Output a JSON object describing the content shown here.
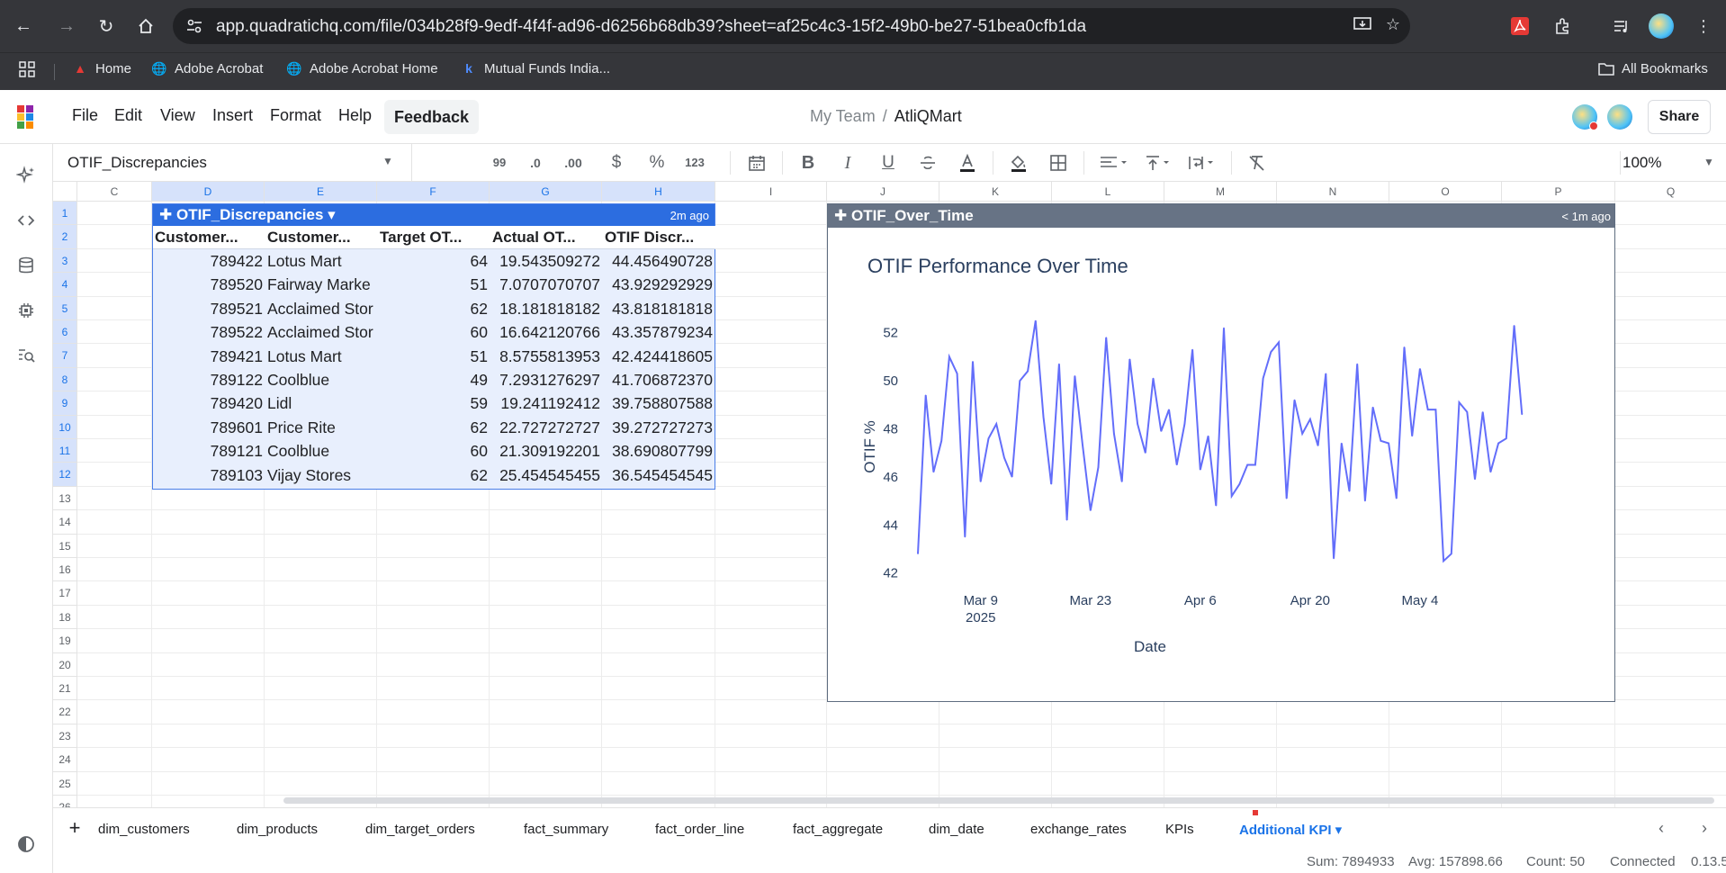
{
  "browser": {
    "url": "app.quadratichq.com/file/034b28f9-9edf-4f4f-ad96-d6256b68db39?sheet=af25c4c3-15f2-49b0-be27-51bea0cfb1da",
    "bookmarks": [
      {
        "label": "Home",
        "icon": "acrobat-icon"
      },
      {
        "label": "Adobe Acrobat",
        "icon": "globe-icon"
      },
      {
        "label": "Adobe Acrobat Home",
        "icon": "globe-icon"
      },
      {
        "label": "Mutual Funds India...",
        "icon": "kuvera-icon"
      }
    ],
    "all_bookmarks": "All Bookmarks"
  },
  "app": {
    "menu": [
      "File",
      "Edit",
      "View",
      "Insert",
      "Format",
      "Help"
    ],
    "feedback": "Feedback",
    "team": "My Team",
    "file_name": "AtliQMart",
    "share": "Share"
  },
  "toolbar": {
    "namebox": "OTIF_Discrepancies",
    "zoom": "100%",
    "quote_label": "99",
    "dec_less": ".0",
    "dec_more": ".00",
    "currency": "$",
    "percent": "%",
    "number_fmt": "123",
    "bold": "B",
    "italic": "I",
    "underline": "U"
  },
  "grid": {
    "columns": [
      "C",
      "D",
      "E",
      "F",
      "G",
      "H",
      "I",
      "J",
      "K",
      "L",
      "M",
      "N",
      "O",
      "P",
      "Q"
    ],
    "rows": [
      "1",
      "2",
      "3",
      "4",
      "5",
      "6",
      "7",
      "8",
      "9",
      "10",
      "11",
      "12",
      "13",
      "14",
      "15",
      "16",
      "17",
      "18",
      "19",
      "20",
      "21",
      "22",
      "23",
      "24",
      "25",
      "26"
    ]
  },
  "table": {
    "name": "OTIF_Discrepancies",
    "updated": "2m ago",
    "headers": [
      "Customer...",
      "Customer...",
      "Target OT...",
      "Actual OT...",
      "OTIF Discr..."
    ],
    "rows": [
      [
        "789422",
        "Lotus Mart",
        "64",
        "19.543509272",
        "44.456490728"
      ],
      [
        "789520",
        "Fairway Marke",
        "51",
        "7.0707070707",
        "43.929292929"
      ],
      [
        "789521",
        "Acclaimed Stor",
        "62",
        "18.181818182",
        "43.818181818"
      ],
      [
        "789522",
        "Acclaimed Stor",
        "60",
        "16.642120766",
        "43.357879234"
      ],
      [
        "789421",
        "Lotus Mart",
        "51",
        "8.5755813953",
        "42.424418605"
      ],
      [
        "789122",
        "Coolblue",
        "49",
        "7.2931276297",
        "41.706872370"
      ],
      [
        "789420",
        "Lidl",
        "59",
        "19.241192412",
        "39.758807588"
      ],
      [
        "789601",
        "Price Rite",
        "62",
        "22.727272727",
        "39.272727273"
      ],
      [
        "789121",
        "Coolblue",
        "60",
        "21.309192201",
        "38.690807799"
      ],
      [
        "789103",
        "Vijay Stores",
        "62",
        "25.454545455",
        "36.545454545"
      ]
    ]
  },
  "chart_cell": {
    "name": "OTIF_Over_Time",
    "updated": "< 1m ago"
  },
  "chart_data": {
    "type": "line",
    "title": "OTIF Performance Over Time",
    "xlabel": "Date",
    "ylabel": "OTIF %",
    "ylim": [
      41.5,
      53
    ],
    "yticks": [
      42,
      44,
      46,
      48,
      50,
      52
    ],
    "x_start": "2025-03-01",
    "x_tick_labels": [
      "Mar 9",
      "Mar 23",
      "Apr 6",
      "Apr 20",
      "May 4"
    ],
    "x_tick_days": [
      8,
      22,
      36,
      50,
      64
    ],
    "year_label": "2025",
    "x_range_days": [
      0,
      78
    ],
    "line_color": "#636efa",
    "series": [
      {
        "name": "OTIF %",
        "values": [
          42.8,
          49.4,
          46.2,
          47.5,
          51.0,
          50.3,
          43.5,
          50.8,
          45.8,
          47.6,
          48.2,
          46.8,
          46.0,
          50.0,
          50.4,
          52.5,
          48.5,
          45.7,
          50.7,
          44.2,
          50.2,
          47.3,
          44.6,
          46.4,
          51.8,
          47.8,
          45.8,
          50.9,
          48.2,
          47.0,
          50.1,
          47.9,
          48.8,
          46.5,
          48.2,
          51.3,
          46.3,
          47.7,
          44.8,
          52.2,
          45.2,
          45.7,
          46.5,
          46.5,
          50.1,
          51.2,
          51.6,
          45.1,
          49.2,
          47.8,
          48.4,
          47.3,
          50.3,
          42.6,
          47.4,
          45.4,
          50.7,
          45.0,
          48.9,
          47.5,
          47.4,
          45.1,
          51.4,
          47.7,
          50.5,
          48.8,
          48.8,
          42.5,
          42.8,
          49.1,
          48.7,
          45.9,
          48.7,
          46.2,
          47.4,
          47.6,
          52.3,
          48.6
        ]
      }
    ]
  },
  "sheets": {
    "tabs": [
      "dim_customers",
      "dim_products",
      "dim_target_orders",
      "fact_summary",
      "fact_order_line",
      "fact_aggregate",
      "dim_date",
      "exchange_rates",
      "KPIs",
      "Additional KPI"
    ],
    "active": "Additional KPI"
  },
  "status": {
    "sum": "Sum: 7894933",
    "avg": "Avg: 157898.66",
    "count": "Count: 50",
    "connection": "Connected",
    "version": "0.13.5"
  }
}
